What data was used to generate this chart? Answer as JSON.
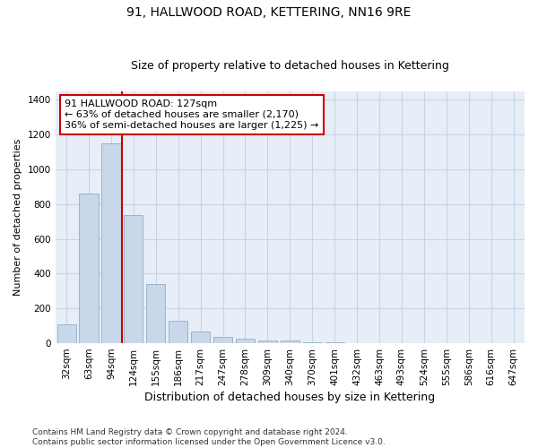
{
  "title": "91, HALLWOOD ROAD, KETTERING, NN16 9RE",
  "subtitle": "Size of property relative to detached houses in Kettering",
  "xlabel": "Distribution of detached houses by size in Kettering",
  "ylabel": "Number of detached properties",
  "categories": [
    "32sqm",
    "63sqm",
    "94sqm",
    "124sqm",
    "155sqm",
    "186sqm",
    "217sqm",
    "247sqm",
    "278sqm",
    "309sqm",
    "340sqm",
    "370sqm",
    "401sqm",
    "432sqm",
    "463sqm",
    "493sqm",
    "524sqm",
    "555sqm",
    "586sqm",
    "616sqm",
    "647sqm"
  ],
  "values": [
    110,
    860,
    1150,
    735,
    340,
    130,
    65,
    38,
    28,
    17,
    15,
    8,
    5,
    0,
    0,
    0,
    0,
    0,
    0,
    0,
    0
  ],
  "bar_color": "#c8d8ea",
  "bar_edgecolor": "#9ab4cc",
  "vline_color": "#cc0000",
  "vline_xindex": 3,
  "annotation_text": "91 HALLWOOD ROAD: 127sqm\n← 63% of detached houses are smaller (2,170)\n36% of semi-detached houses are larger (1,225) →",
  "annotation_box_edgecolor": "#cc0000",
  "annotation_box_facecolor": "#ffffff",
  "ylim": [
    0,
    1450
  ],
  "yticks": [
    0,
    200,
    400,
    600,
    800,
    1000,
    1200,
    1400
  ],
  "grid_color": "#c8d4e4",
  "bg_color": "#e8eef8",
  "footer": "Contains HM Land Registry data © Crown copyright and database right 2024.\nContains public sector information licensed under the Open Government Licence v3.0.",
  "title_fontsize": 10,
  "subtitle_fontsize": 9,
  "xlabel_fontsize": 9,
  "ylabel_fontsize": 8,
  "tick_fontsize": 7.5,
  "annotation_fontsize": 8,
  "footer_fontsize": 6.5
}
